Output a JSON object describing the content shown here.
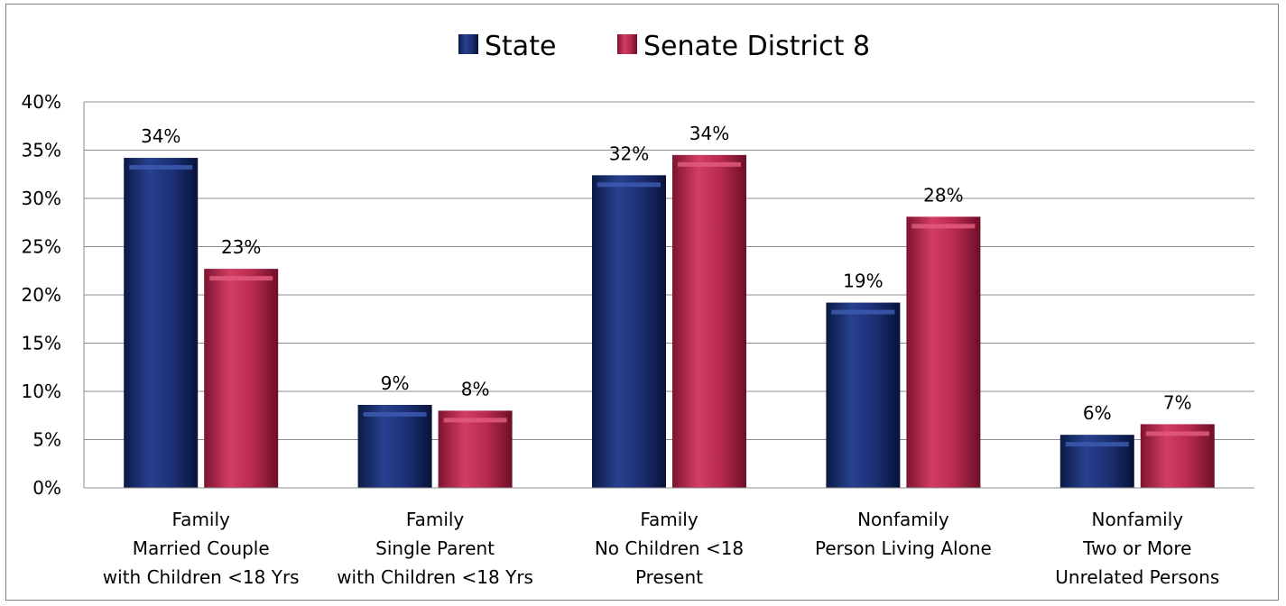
{
  "chart_data": {
    "type": "bar",
    "legend_position": "top",
    "grid": true,
    "ylim": [
      0,
      40
    ],
    "yticks": [
      "0%",
      "5%",
      "10%",
      "15%",
      "20%",
      "25%",
      "30%",
      "35%",
      "40%"
    ],
    "categories": [
      [
        "Family",
        "Married Couple",
        "with Children <18 Yrs"
      ],
      [
        "Family",
        "Single Parent",
        "with Children <18 Yrs"
      ],
      [
        "Family",
        "No Children <18",
        "Present"
      ],
      [
        "Nonfamily",
        "Person Living Alone"
      ],
      [
        "Nonfamily",
        "Two or More",
        "Unrelated Persons"
      ]
    ],
    "series": [
      {
        "name": "State",
        "color": "#1a2f6e",
        "values": [
          34.2,
          8.6,
          32.4,
          19.2,
          5.5
        ],
        "labels": [
          "34%",
          "9%",
          "32%",
          "19%",
          "6%"
        ]
      },
      {
        "name": "Senate District 8",
        "color": "#c0284f",
        "values": [
          22.7,
          8.0,
          34.5,
          28.1,
          6.6
        ],
        "labels": [
          "23%",
          "8%",
          "34%",
          "28%",
          "7%"
        ]
      }
    ]
  }
}
